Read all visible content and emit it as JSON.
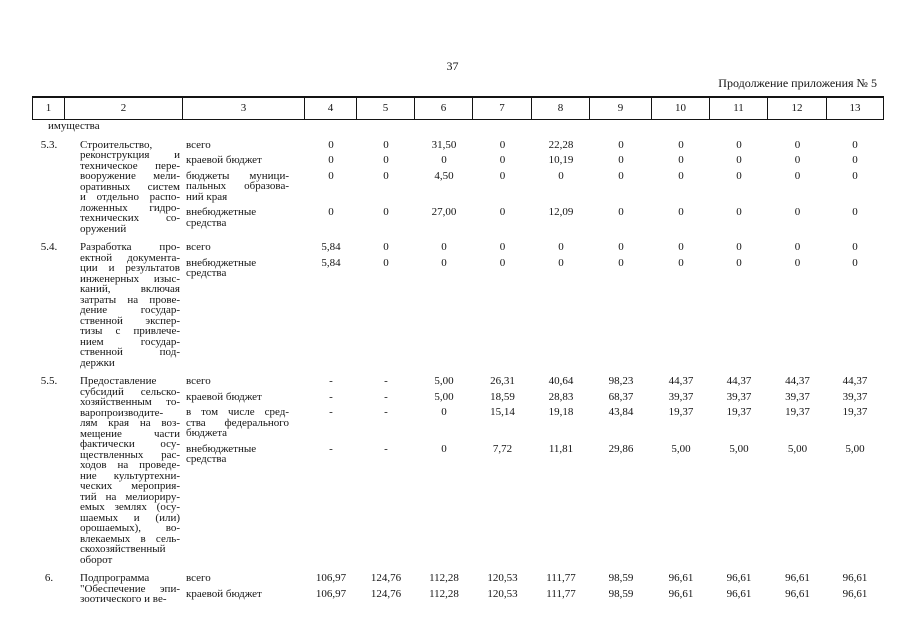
{
  "page": {
    "number": "37",
    "continuation": "Продолжение приложения № 5"
  },
  "table": {
    "header_cols": [
      "1",
      "2",
      "3",
      "4",
      "5",
      "6",
      "7",
      "8",
      "9",
      "10",
      "11",
      "12",
      "13"
    ],
    "groups": [
      {
        "num": "",
        "desc_lines": [
          "имущества"
        ],
        "sources": []
      },
      {
        "num": "5.3.",
        "desc_lines": [
          "Строительство,",
          "реконструкция и",
          "техническое пере-",
          "вооружение мели-",
          "оративных систем",
          "и отдельно распо-",
          "ложенных гидро-",
          "технических со-",
          "оружений"
        ],
        "sources": [
          {
            "label_lines": [
              "всего"
            ],
            "values": [
              "0",
              "0",
              "31,50",
              "0",
              "22,28",
              "0",
              "0",
              "0",
              "0",
              "0"
            ]
          },
          {
            "label_lines": [
              "краевой бюджет"
            ],
            "values": [
              "0",
              "0",
              "0",
              "0",
              "10,19",
              "0",
              "0",
              "0",
              "0",
              "0"
            ]
          },
          {
            "label_lines": [
              "бюджеты муници-",
              "пальных образова-",
              "ний края"
            ],
            "values": [
              "0",
              "0",
              "4,50",
              "0",
              "0",
              "0",
              "0",
              "0",
              "0",
              "0"
            ]
          },
          {
            "label_lines": [
              "внебюджетные",
              "средства"
            ],
            "values": [
              "0",
              "0",
              "27,00",
              "0",
              "12,09",
              "0",
              "0",
              "0",
              "0",
              "0"
            ]
          }
        ]
      },
      {
        "num": "5.4.",
        "desc_lines": [
          "Разработка про-",
          "ектной документа-",
          "ции и результатов",
          "инженерных изыс-",
          "каний, включая",
          "затраты на прове-",
          "дение государ-",
          "ственной экспер-",
          "тизы с привлече-",
          "нием государ-",
          "ственной под-",
          "держки"
        ],
        "sources": [
          {
            "label_lines": [
              "всего"
            ],
            "values": [
              "5,84",
              "0",
              "0",
              "0",
              "0",
              "0",
              "0",
              "0",
              "0",
              "0"
            ]
          },
          {
            "label_lines": [
              "внебюджетные",
              "средства"
            ],
            "values": [
              "5,84",
              "0",
              "0",
              "0",
              "0",
              "0",
              "0",
              "0",
              "0",
              "0"
            ]
          }
        ]
      },
      {
        "num": "5.5.",
        "desc_lines": [
          "Предоставление",
          "субсидий сельско-",
          "хозяйственным то-",
          "варопроизводите-",
          "лям края на воз-",
          "мещение части",
          "фактически осу-",
          "ществленных рас-",
          "ходов на проведе-",
          "ние культуртехни-",
          "ческих мероприя-",
          "тий на мелиориру-",
          "емых землях (осу-",
          "шаемых и (или)",
          "орошаемых), во-",
          "влекаемых в сель-",
          "скохозяйственный",
          "оборот"
        ],
        "sources": [
          {
            "label_lines": [
              "всего"
            ],
            "values": [
              "-",
              "-",
              "5,00",
              "26,31",
              "40,64",
              "98,23",
              "44,37",
              "44,37",
              "44,37",
              "44,37"
            ]
          },
          {
            "label_lines": [
              "краевой бюджет"
            ],
            "values": [
              "-",
              "-",
              "5,00",
              "18,59",
              "28,83",
              "68,37",
              "39,37",
              "39,37",
              "39,37",
              "39,37"
            ]
          },
          {
            "label_lines": [
              "в том числе сред-",
              "ства федерального",
              "бюджета"
            ],
            "values": [
              "-",
              "-",
              "0",
              "15,14",
              "19,18",
              "43,84",
              "19,37",
              "19,37",
              "19,37",
              "19,37"
            ]
          },
          {
            "label_lines": [
              "внебюджетные",
              "средства"
            ],
            "values": [
              "-",
              "-",
              "0",
              "7,72",
              "11,81",
              "29,86",
              "5,00",
              "5,00",
              "5,00",
              "5,00"
            ]
          }
        ]
      },
      {
        "num": "6.",
        "desc_lines": [
          "Подпрограмма",
          "\"Обеспечение эпи-",
          "зоотического и ве-"
        ],
        "sources": [
          {
            "label_lines": [
              "всего"
            ],
            "values": [
              "106,97",
              "124,76",
              "112,28",
              "120,53",
              "111,77",
              "98,59",
              "96,61",
              "96,61",
              "96,61",
              "96,61"
            ]
          },
          {
            "label_lines": [
              "краевой бюджет"
            ],
            "values": [
              "106,97",
              "124,76",
              "112,28",
              "120,53",
              "111,77",
              "98,59",
              "96,61",
              "96,61",
              "96,61",
              "96,61"
            ]
          }
        ]
      }
    ]
  }
}
